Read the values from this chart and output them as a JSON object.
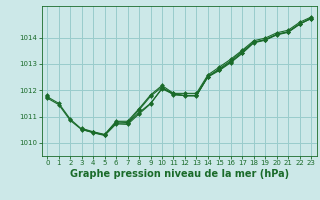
{
  "background_color": "#cce8e8",
  "grid_color": "#99cccc",
  "line_color": "#1a6b2a",
  "marker_color": "#1a6b2a",
  "title": "Graphe pression niveau de la mer (hPa)",
  "title_fontsize": 7.0,
  "title_color": "#1a6b2a",
  "tick_color": "#1a6b2a",
  "tick_fontsize": 5.0,
  "ylim": [
    1009.5,
    1015.2
  ],
  "yticks": [
    1010,
    1011,
    1012,
    1013,
    1014
  ],
  "xlim": [
    -0.5,
    23.5
  ],
  "xticks": [
    0,
    1,
    2,
    3,
    4,
    5,
    6,
    7,
    8,
    9,
    10,
    11,
    12,
    13,
    14,
    15,
    16,
    17,
    18,
    19,
    20,
    21,
    22,
    23
  ],
  "series": [
    [
      1011.7,
      1011.45,
      1010.85,
      1010.5,
      1010.4,
      1010.3,
      1010.75,
      1010.75,
      1011.15,
      1011.5,
      1012.05,
      1011.85,
      1011.8,
      1011.8,
      1012.5,
      1012.75,
      1013.05,
      1013.4,
      1013.8,
      1013.9,
      1014.1,
      1014.2,
      1014.5,
      1014.75
    ],
    [
      1011.75,
      1011.5,
      1010.9,
      1010.52,
      1010.38,
      1010.28,
      1010.72,
      1010.7,
      1011.1,
      1011.48,
      1012.08,
      1011.88,
      1011.78,
      1011.78,
      1012.52,
      1012.78,
      1013.08,
      1013.42,
      1013.82,
      1013.92,
      1014.12,
      1014.22,
      1014.52,
      1014.72
    ],
    [
      1011.8,
      null,
      null,
      1010.55,
      1010.42,
      1010.32,
      1010.82,
      1010.82,
      1011.3,
      1011.82,
      1012.18,
      1011.88,
      1011.88,
      1011.88,
      1012.58,
      1012.88,
      1013.18,
      1013.52,
      1013.88,
      1013.98,
      1014.18,
      1014.28,
      1014.58,
      1014.78
    ],
    [
      1011.78,
      null,
      null,
      1010.53,
      1010.4,
      1010.3,
      1010.8,
      1010.77,
      1011.25,
      1011.77,
      1012.12,
      1011.82,
      1011.8,
      1011.8,
      1012.52,
      1012.82,
      1013.12,
      1013.48,
      1013.82,
      1013.92,
      1014.12,
      1014.22,
      1014.52,
      1014.72
    ]
  ]
}
